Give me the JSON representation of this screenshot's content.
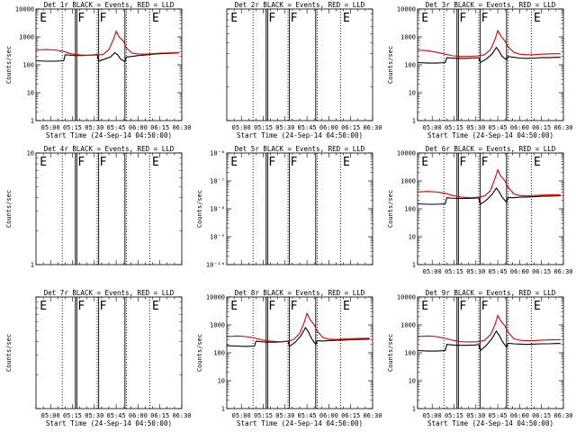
{
  "colors": {
    "events": "#000000",
    "lld": "#dd0000",
    "axis": "#000000"
  },
  "chart_data": [
    {
      "type": "line",
      "title": "Det 1r BLACK = Events, RED = LLD",
      "ylabel": "Counts/sec",
      "xlabel": "Start Time (24-Sep-14 04:50:00)",
      "yscale": "log",
      "ylim": [
        1,
        10000
      ],
      "yticks": [
        "1",
        "10",
        "100",
        "1000",
        "10000"
      ],
      "xticks": [
        "05:00",
        "05:15",
        "05:30",
        "05:45",
        "06:00",
        "06:15",
        "06:30"
      ],
      "xlim": [
        "04:50",
        "06:30"
      ],
      "solid_vlines": [
        "05:17",
        "05:18",
        "05:33",
        "05:51"
      ],
      "dotted_vlines": [
        "05:08",
        "05:32",
        "05:52",
        "06:08"
      ],
      "markers": [
        {
          "label": "E",
          "x": "04:52"
        },
        {
          "label": "F",
          "x": "05:18"
        },
        {
          "label": "F",
          "x": "05:33"
        },
        {
          "label": "E",
          "x": "06:09"
        }
      ],
      "series": [
        {
          "name": "BLACK = Events",
          "x": [
            "04:50",
            "04:57",
            "05:03",
            "05:09",
            "05:10",
            "05:17",
            "05:23",
            "05:29",
            "05:32",
            "05:33",
            "05:37",
            "05:41",
            "05:44",
            "05:46",
            "05:48",
            "05:51",
            "05:52",
            "05:56",
            "06:00",
            "06:05",
            "06:10",
            "06:15",
            "06:20",
            "06:25",
            "06:28"
          ],
          "values": [
            140,
            135,
            135,
            140,
            230,
            215,
            215,
            225,
            235,
            135,
            160,
            190,
            270,
            230,
            160,
            130,
            190,
            200,
            215,
            225,
            240,
            250,
            255,
            265,
            270
          ]
        },
        {
          "name": "RED = LLD",
          "x": [
            "04:50",
            "04:57",
            "05:03",
            "05:09",
            "05:14",
            "05:20",
            "05:26",
            "05:32",
            "05:36",
            "05:40",
            "05:43",
            "05:45",
            "05:47",
            "05:50",
            "05:52",
            "05:56",
            "06:00",
            "06:05",
            "06:10",
            "06:15",
            "06:20",
            "06:25",
            "06:28"
          ],
          "values": [
            340,
            350,
            340,
            300,
            250,
            225,
            220,
            225,
            235,
            350,
            800,
            1600,
            1000,
            700,
            400,
            260,
            245,
            240,
            250,
            260,
            265,
            270,
            275
          ]
        }
      ]
    },
    {
      "type": "line",
      "title": "Det 2r BLACK = Events, RED = LLD",
      "ylabel": "",
      "xlabel": "Start Time (24-Sep-14 04:50:00)",
      "yscale": "log",
      "ylim": [
        1,
        10
      ],
      "yticks": [],
      "xticks": [
        "05:00",
        "05:15",
        "05:30",
        "05:45",
        "06:00",
        "06:15",
        "06:30"
      ],
      "xlim": [
        "04:50",
        "06:30"
      ],
      "solid_vlines": [
        "05:17",
        "05:18",
        "05:33",
        "05:51"
      ],
      "dotted_vlines": [
        "05:08",
        "05:32",
        "05:52",
        "06:08"
      ],
      "markers": [
        {
          "label": "E",
          "x": "04:52"
        },
        {
          "label": "F",
          "x": "05:18"
        },
        {
          "label": "F",
          "x": "05:33"
        },
        {
          "label": "E",
          "x": "06:09"
        }
      ],
      "series": []
    },
    {
      "type": "line",
      "title": "Det 3r BLACK = Events, RED = LLD",
      "ylabel": "Counts/sec",
      "xlabel": "Start Time (24-Sep-14 04:50:00)",
      "yscale": "log",
      "ylim": [
        1,
        10000
      ],
      "yticks": [
        "1",
        "10",
        "100",
        "1000",
        "10000"
      ],
      "xticks": [
        "05:00",
        "05:15",
        "05:30",
        "05:45",
        "06:00",
        "06:15",
        "06:30"
      ],
      "xlim": [
        "04:50",
        "06:30"
      ],
      "solid_vlines": [
        "05:17",
        "05:18",
        "05:33",
        "05:51"
      ],
      "dotted_vlines": [
        "05:08",
        "05:32",
        "05:52",
        "06:08"
      ],
      "markers": [
        {
          "label": "E",
          "x": "04:52"
        },
        {
          "label": "F",
          "x": "05:18"
        },
        {
          "label": "F",
          "x": "05:33"
        },
        {
          "label": "E",
          "x": "06:09"
        }
      ],
      "series": [
        {
          "name": "BLACK = Events",
          "x": [
            "04:50",
            "04:57",
            "05:03",
            "05:09",
            "05:10",
            "05:17",
            "05:23",
            "05:29",
            "05:32",
            "05:33",
            "05:37",
            "05:41",
            "05:44",
            "05:46",
            "05:48",
            "05:51",
            "05:52",
            "05:56",
            "06:00",
            "06:05",
            "06:10",
            "06:15",
            "06:20",
            "06:25",
            "06:28"
          ],
          "values": [
            120,
            115,
            115,
            120,
            180,
            170,
            170,
            175,
            180,
            120,
            160,
            240,
            420,
            300,
            200,
            150,
            200,
            185,
            175,
            170,
            175,
            180,
            180,
            185,
            185
          ]
        },
        {
          "name": "RED = LLD",
          "x": [
            "04:50",
            "04:57",
            "05:03",
            "05:09",
            "05:14",
            "05:20",
            "05:26",
            "05:32",
            "05:36",
            "05:40",
            "05:43",
            "05:45",
            "05:47",
            "05:50",
            "05:52",
            "05:56",
            "06:00",
            "06:05",
            "06:10",
            "06:15",
            "06:20",
            "06:25",
            "06:28"
          ],
          "values": [
            340,
            320,
            280,
            240,
            210,
            200,
            200,
            210,
            230,
            350,
            800,
            1700,
            1100,
            700,
            450,
            280,
            240,
            230,
            230,
            240,
            245,
            250,
            250
          ]
        }
      ]
    },
    {
      "type": "line",
      "title": "Det 4r BLACK = Events, RED = LLD",
      "ylabel": "Counts/sec",
      "xlabel": "",
      "yscale": "log",
      "ylim": [
        1,
        10
      ],
      "yticks": [
        "1",
        "10"
      ],
      "xticks": [],
      "xlim": [
        "04:50",
        "06:30"
      ],
      "solid_vlines": [
        "05:17",
        "05:18",
        "05:33",
        "05:51"
      ],
      "dotted_vlines": [
        "05:08",
        "05:32",
        "05:52",
        "06:08"
      ],
      "markers": [
        {
          "label": "E",
          "x": "04:52"
        },
        {
          "label": "F",
          "x": "05:18"
        },
        {
          "label": "F",
          "x": "05:33"
        },
        {
          "label": "E",
          "x": "06:09"
        }
      ],
      "series": []
    },
    {
      "type": "line",
      "title": "Det 5r BLACK = Events, RED = LLD",
      "ylabel": "Counts/sec",
      "xlabel": "",
      "yscale": "log",
      "ylim": [
        1e-10,
        1e-06
      ],
      "yticks": [
        "10⁻¹⁰",
        "10⁻⁹",
        "10⁻⁸",
        "10⁻⁷",
        "10⁻⁶"
      ],
      "xticks": [],
      "xlim": [
        "04:50",
        "06:30"
      ],
      "solid_vlines": [
        "05:17",
        "05:18",
        "05:33",
        "05:51"
      ],
      "dotted_vlines": [
        "05:08",
        "05:32",
        "05:52",
        "06:08"
      ],
      "markers": [
        {
          "label": "E",
          "x": "04:52"
        },
        {
          "label": "F",
          "x": "05:18"
        },
        {
          "label": "F",
          "x": "05:33"
        },
        {
          "label": "E",
          "x": "06:09"
        }
      ],
      "series": []
    },
    {
      "type": "line",
      "title": "Det 6r BLACK = Events, RED = LLD",
      "ylabel": "Counts/sec",
      "xlabel": "",
      "yscale": "log",
      "ylim": [
        1,
        10000
      ],
      "yticks": [
        "1",
        "10",
        "100",
        "1000",
        "10000"
      ],
      "xticks": [
        "05:00",
        "05:15",
        "05:30",
        "05:45",
        "06:00",
        "06:15",
        "06:30"
      ],
      "xlim": [
        "04:50",
        "06:30"
      ],
      "solid_vlines": [
        "05:17",
        "05:18",
        "05:33",
        "05:51"
      ],
      "dotted_vlines": [
        "05:08",
        "05:32",
        "05:52",
        "06:08"
      ],
      "markers": [
        {
          "label": "E",
          "x": "04:52"
        },
        {
          "label": "F",
          "x": "05:18"
        },
        {
          "label": "F",
          "x": "05:33"
        },
        {
          "label": "E",
          "x": "06:09"
        }
      ],
      "series": [
        {
          "name": "BLACK = Events",
          "x": [
            "04:50",
            "04:57",
            "05:03",
            "05:09",
            "05:10",
            "05:17",
            "05:23",
            "05:29",
            "05:32",
            "05:33",
            "05:37",
            "05:41",
            "05:44",
            "05:46",
            "05:48",
            "05:51",
            "05:52",
            "05:56",
            "06:00",
            "06:05",
            "06:10",
            "06:15",
            "06:20",
            "06:25",
            "06:28"
          ],
          "values": [
            150,
            145,
            145,
            150,
            250,
            235,
            235,
            240,
            250,
            145,
            200,
            320,
            550,
            400,
            260,
            170,
            250,
            250,
            260,
            265,
            270,
            280,
            285,
            290,
            295
          ]
        },
        {
          "name": "RED = LLD",
          "x": [
            "04:50",
            "04:57",
            "05:03",
            "05:09",
            "05:14",
            "05:20",
            "05:26",
            "05:32",
            "05:36",
            "05:40",
            "05:43",
            "05:45",
            "05:47",
            "05:50",
            "05:52",
            "05:56",
            "06:00",
            "06:05",
            "06:10",
            "06:15",
            "06:20",
            "06:25",
            "06:28"
          ],
          "values": [
            400,
            420,
            400,
            360,
            300,
            260,
            250,
            260,
            290,
            450,
            1200,
            2500,
            1500,
            1000,
            600,
            340,
            300,
            290,
            300,
            310,
            315,
            320,
            320
          ]
        }
      ]
    },
    {
      "type": "line",
      "title": "Det 7r BLACK = Events, RED = LLD",
      "ylabel": "Counts/sec",
      "xlabel": "Start Time (24-Sep-14 04:50:00)",
      "yscale": "log",
      "ylim": [
        1,
        10
      ],
      "yticks": [],
      "xticks": [
        "05:00",
        "05:15",
        "05:30",
        "05:45",
        "06:00",
        "06:15",
        "06:30"
      ],
      "xlim": [
        "04:50",
        "06:30"
      ],
      "solid_vlines": [
        "05:17",
        "05:18",
        "05:33",
        "05:51"
      ],
      "dotted_vlines": [
        "05:08",
        "05:32",
        "05:52",
        "06:08"
      ],
      "markers": [
        {
          "label": "E",
          "x": "04:52"
        },
        {
          "label": "F",
          "x": "05:18"
        },
        {
          "label": "F",
          "x": "05:33"
        },
        {
          "label": "E",
          "x": "06:09"
        }
      ],
      "series": []
    },
    {
      "type": "line",
      "title": "Det 8r BLACK = Events, RED = LLD",
      "ylabel": "Counts/sec",
      "xlabel": "Start Time (24-Sep-14 04:50:00)",
      "yscale": "log",
      "ylim": [
        1,
        10000
      ],
      "yticks": [
        "1",
        "10",
        "100",
        "1000",
        "10000"
      ],
      "xticks": [
        "05:00",
        "05:15",
        "05:30",
        "05:45",
        "06:00",
        "06:15",
        "06:30"
      ],
      "xlim": [
        "04:50",
        "06:30"
      ],
      "solid_vlines": [
        "05:17",
        "05:18",
        "05:33",
        "05:51"
      ],
      "dotted_vlines": [
        "05:08",
        "05:32",
        "05:52",
        "06:08"
      ],
      "markers": [
        {
          "label": "E",
          "x": "04:52"
        },
        {
          "label": "F",
          "x": "05:18"
        },
        {
          "label": "F",
          "x": "05:33"
        },
        {
          "label": "E",
          "x": "06:09"
        }
      ],
      "series": [
        {
          "name": "BLACK = Events",
          "x": [
            "04:50",
            "04:57",
            "05:03",
            "05:09",
            "05:10",
            "05:17",
            "05:23",
            "05:29",
            "05:32",
            "05:33",
            "05:37",
            "05:41",
            "05:44",
            "05:46",
            "05:48",
            "05:51",
            "05:52",
            "05:56",
            "06:00",
            "06:05",
            "06:10",
            "06:15",
            "06:20",
            "06:25",
            "06:28"
          ],
          "values": [
            180,
            175,
            170,
            175,
            260,
            240,
            240,
            250,
            260,
            170,
            240,
            420,
            800,
            560,
            330,
            200,
            270,
            265,
            275,
            280,
            285,
            295,
            300,
            305,
            310
          ]
        },
        {
          "name": "RED = LLD",
          "x": [
            "04:50",
            "04:57",
            "05:03",
            "05:09",
            "05:14",
            "05:20",
            "05:26",
            "05:32",
            "05:36",
            "05:40",
            "05:43",
            "05:45",
            "05:47",
            "05:50",
            "05:52",
            "05:56",
            "06:00",
            "06:05",
            "06:10",
            "06:15",
            "06:20",
            "06:25",
            "06:28"
          ],
          "values": [
            380,
            400,
            380,
            340,
            290,
            260,
            250,
            260,
            300,
            500,
            1200,
            2600,
            1600,
            1000,
            600,
            350,
            310,
            300,
            310,
            320,
            325,
            330,
            330
          ]
        }
      ]
    },
    {
      "type": "line",
      "title": "Det 9r BLACK = Events, RED = LLD",
      "ylabel": "Counts/sec",
      "xlabel": "Start Time (24-Sep-14 04:50:00)",
      "yscale": "log",
      "ylim": [
        1,
        10000
      ],
      "yticks": [
        "1",
        "10",
        "100",
        "1000",
        "10000"
      ],
      "xticks": [
        "05:00",
        "05:15",
        "05:30",
        "05:45",
        "06:00",
        "06:15",
        "06:30"
      ],
      "xlim": [
        "04:50",
        "06:30"
      ],
      "solid_vlines": [
        "05:17",
        "05:18",
        "05:33",
        "05:51"
      ],
      "dotted_vlines": [
        "05:08",
        "05:32",
        "05:52",
        "06:08"
      ],
      "markers": [
        {
          "label": "E",
          "x": "04:52"
        },
        {
          "label": "F",
          "x": "05:18"
        },
        {
          "label": "F",
          "x": "05:33"
        },
        {
          "label": "E",
          "x": "06:09"
        }
      ],
      "series": [
        {
          "name": "BLACK = Events",
          "x": [
            "04:50",
            "04:57",
            "05:03",
            "05:09",
            "05:10",
            "05:17",
            "05:23",
            "05:29",
            "05:32",
            "05:33",
            "05:37",
            "05:41",
            "05:44",
            "05:46",
            "05:48",
            "05:51",
            "05:52",
            "05:56",
            "06:00",
            "06:05",
            "06:10",
            "06:15",
            "06:20",
            "06:25",
            "06:28"
          ],
          "values": [
            120,
            115,
            115,
            120,
            200,
            185,
            185,
            190,
            200,
            120,
            180,
            320,
            600,
            420,
            260,
            160,
            220,
            210,
            205,
            200,
            205,
            210,
            210,
            215,
            215
          ]
        },
        {
          "name": "RED = LLD",
          "x": [
            "04:50",
            "04:57",
            "05:03",
            "05:09",
            "05:14",
            "05:20",
            "05:26",
            "05:32",
            "05:36",
            "05:40",
            "05:43",
            "05:45",
            "05:47",
            "05:50",
            "05:52",
            "05:56",
            "06:00",
            "06:05",
            "06:10",
            "06:15",
            "06:20",
            "06:25",
            "06:28"
          ],
          "values": [
            380,
            400,
            380,
            330,
            280,
            250,
            245,
            250,
            280,
            450,
            1000,
            2200,
            1400,
            900,
            550,
            320,
            280,
            270,
            275,
            285,
            290,
            295,
            295
          ]
        }
      ]
    }
  ]
}
